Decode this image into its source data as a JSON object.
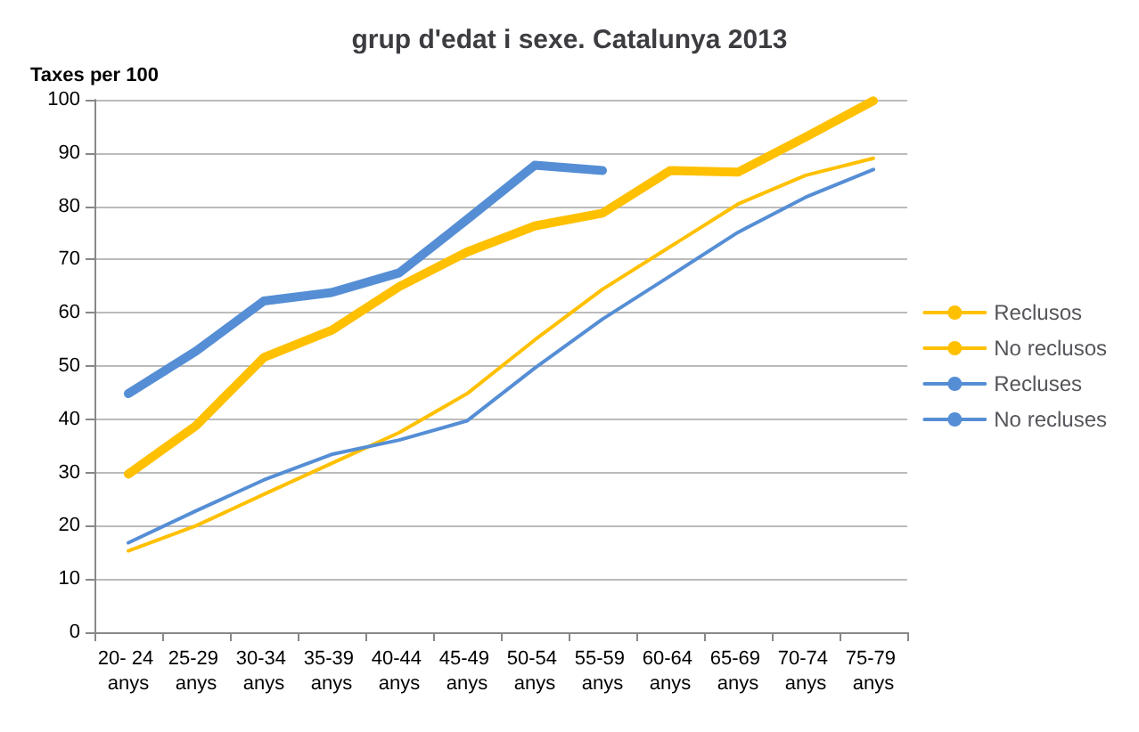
{
  "chart_data": {
    "type": "line",
    "title": "grup d'edat i sexe. Catalunya 2013",
    "ylabel": "Taxes per 100",
    "categories": [
      "20- 24 anys",
      "25-29 anys",
      "30-34 anys",
      "35-39 anys",
      "40-44 anys",
      "45-49 anys",
      "50-54 anys",
      "55-59 anys",
      "60-64 anys",
      "65-69 anys",
      "70-74 anys",
      "75-79 anys"
    ],
    "series": [
      {
        "name": "Reclusos",
        "color": "#ffc000",
        "values": [
          29.7,
          38.8,
          51.6,
          56.7,
          64.9,
          71.4,
          76.3,
          78.7,
          86.7,
          86.4,
          93,
          99.8
        ]
      },
      {
        "name": "No reclusos",
        "color": "#ffc000",
        "values": [
          15.3,
          20,
          25.9,
          31.7,
          37.5,
          44.8,
          54.9,
          64.4,
          72.4,
          80.4,
          85.8,
          89
        ]
      },
      {
        "name": "Recluses",
        "color": "#558ed5",
        "values": [
          44.8,
          52.8,
          62.2,
          63.8,
          67.5,
          77.5,
          87.7,
          86.7,
          null,
          null,
          null,
          null
        ]
      },
      {
        "name": "No recluses",
        "color": "#558ed5",
        "values": [
          16.8,
          22.8,
          28.6,
          33.4,
          36.1,
          39.7,
          49.6,
          58.8,
          66.9,
          75.1,
          81.7,
          86.9
        ]
      }
    ],
    "ylim": [
      0,
      100
    ],
    "yticks": [
      0,
      10,
      20,
      30,
      40,
      50,
      60,
      70,
      80,
      90,
      100
    ],
    "grid": "y",
    "legend": "right",
    "marker": "none",
    "line_style": "solid"
  }
}
